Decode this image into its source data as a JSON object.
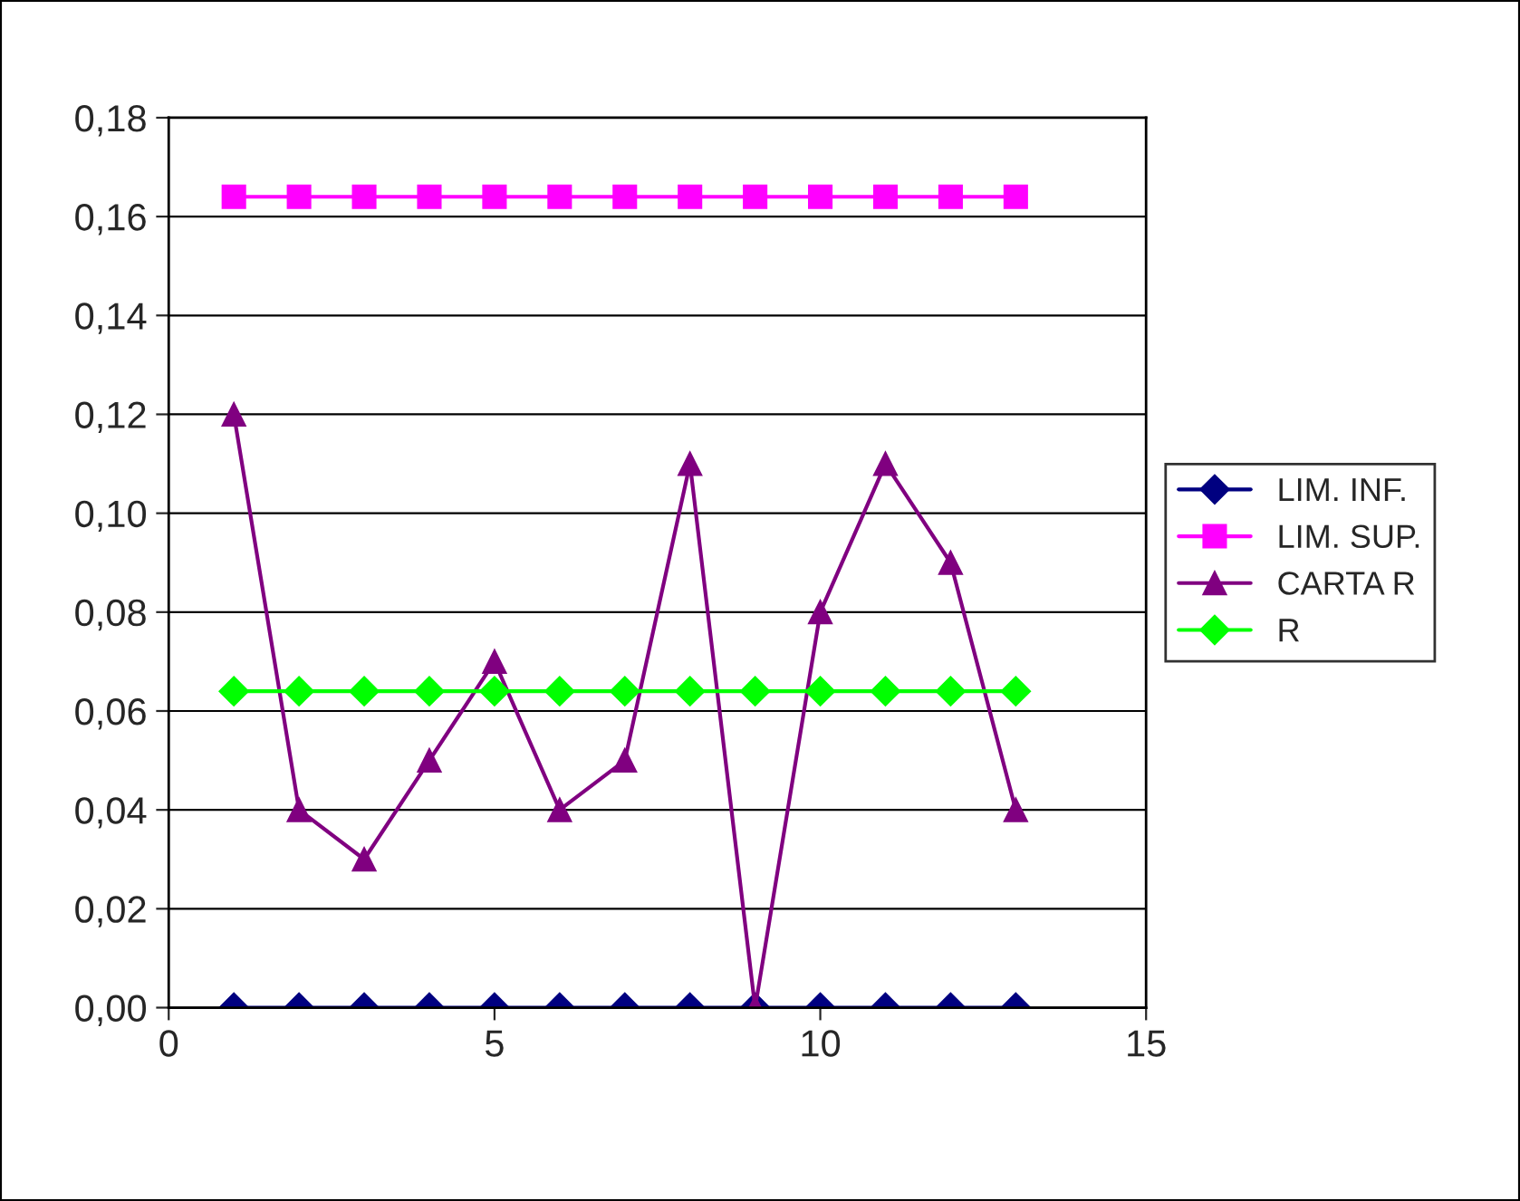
{
  "chart_data": {
    "type": "line",
    "x": [
      1,
      2,
      3,
      4,
      5,
      6,
      7,
      8,
      9,
      10,
      11,
      12,
      13
    ],
    "series": [
      {
        "name": "LIM. INF.",
        "color": "#000080",
        "marker": "diamond",
        "values": [
          0,
          0,
          0,
          0,
          0,
          0,
          0,
          0,
          0,
          0,
          0,
          0,
          0
        ]
      },
      {
        "name": "LIM. SUP.",
        "color": "#ff00ff",
        "marker": "square",
        "values": [
          0.164,
          0.164,
          0.164,
          0.164,
          0.164,
          0.164,
          0.164,
          0.164,
          0.164,
          0.164,
          0.164,
          0.164,
          0.164
        ]
      },
      {
        "name": "CARTA R",
        "color": "#800080",
        "marker": "triangle",
        "values": [
          0.12,
          0.04,
          0.03,
          0.05,
          0.07,
          0.04,
          0.05,
          0.11,
          0,
          0.08,
          0.11,
          0.09,
          0.04
        ]
      },
      {
        "name": "R",
        "color": "#00ff00",
        "marker": "diamond",
        "values": [
          0.064,
          0.064,
          0.064,
          0.064,
          0.064,
          0.064,
          0.064,
          0.064,
          0.064,
          0.064,
          0.064,
          0.064,
          0.064
        ]
      }
    ],
    "xlim": [
      0,
      15
    ],
    "xticks": [
      0,
      5,
      10,
      15
    ],
    "ylim": [
      0,
      0.18
    ],
    "yticks": [
      {
        "value": 0,
        "label": "0,00"
      },
      {
        "value": 0.02,
        "label": "0,02"
      },
      {
        "value": 0.04,
        "label": "0,04"
      },
      {
        "value": 0.06,
        "label": "0,06"
      },
      {
        "value": 0.08,
        "label": "0,08"
      },
      {
        "value": 0.1,
        "label": "0,10"
      },
      {
        "value": 0.12,
        "label": "0,12"
      },
      {
        "value": 0.14,
        "label": "0,14"
      },
      {
        "value": 0.16,
        "label": "0,16"
      },
      {
        "value": 0.18,
        "label": "0,18"
      }
    ],
    "grid": "y",
    "legend": "right",
    "line_style": "solid"
  }
}
